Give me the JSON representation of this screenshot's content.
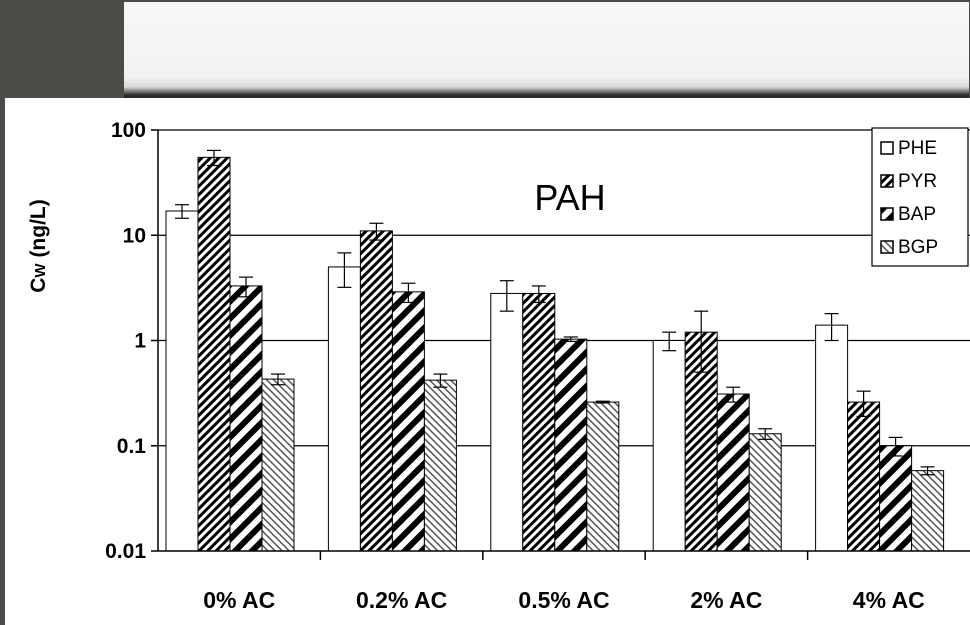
{
  "chart_data": {
    "type": "bar",
    "title": "PAH",
    "ylabel": "Cw (ng/L)",
    "ylabel_main": "C",
    "ylabel_sub": "W",
    "ylabel_unit": " (ng/L)",
    "xlabel": "",
    "yscale": "log",
    "ylim": [
      0.01,
      100
    ],
    "yticks": [
      "100",
      "10",
      "1",
      "0.1",
      "0.01"
    ],
    "ytick_values": [
      100,
      10,
      1,
      0.1,
      0.01
    ],
    "categories": [
      "0% AC",
      "0.2% AC",
      "0.5% AC",
      "2% AC",
      "4% AC"
    ],
    "grid": true,
    "legend_position": "top-right",
    "series": [
      {
        "name": "PHE",
        "pattern": "white",
        "values": [
          17,
          5,
          2.8,
          1.0,
          1.4
        ],
        "errors": [
          2.5,
          1.8,
          0.9,
          0.2,
          0.4
        ]
      },
      {
        "name": "PYR",
        "pattern": "dense-diagonal",
        "values": [
          55,
          11,
          2.8,
          1.2,
          0.26
        ],
        "errors": [
          9,
          2,
          0.5,
          0.7,
          0.07
        ]
      },
      {
        "name": "BAP",
        "pattern": "wide-diagonal",
        "values": [
          3.3,
          2.9,
          1.03,
          0.31,
          0.1
        ],
        "errors": [
          0.7,
          0.6,
          0.05,
          0.05,
          0.02
        ]
      },
      {
        "name": "BGP",
        "pattern": "light-diagonal",
        "values": [
          0.43,
          0.42,
          0.26,
          0.13,
          0.058
        ],
        "errors": [
          0.05,
          0.06,
          0.005,
          0.015,
          0.005
        ]
      }
    ]
  }
}
